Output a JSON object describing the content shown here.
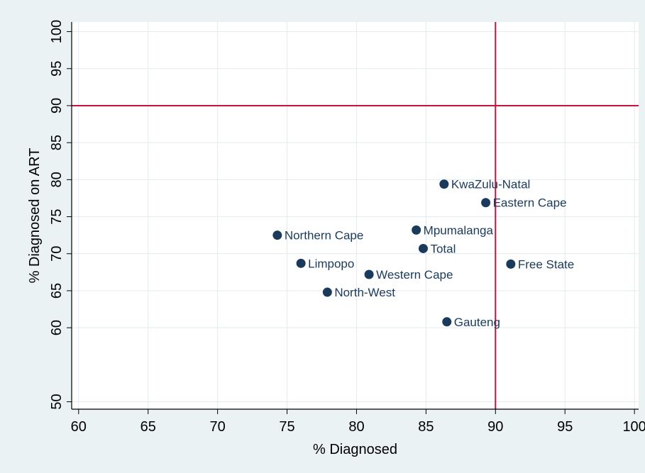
{
  "chart_data": {
    "type": "scatter",
    "xlabel": "% Diagnosed",
    "ylabel": "% Diagnosed on ART",
    "xlim": [
      59.5,
      100.3
    ],
    "ylim": [
      49,
      101.3
    ],
    "x_ticks": [
      60,
      65,
      70,
      75,
      80,
      85,
      90,
      95,
      100
    ],
    "y_ticks": [
      50,
      60,
      65,
      70,
      75,
      80,
      85,
      90,
      95,
      100
    ],
    "grid": true,
    "reference_lines": {
      "x": 90,
      "y": 90
    },
    "points": [
      {
        "label": "KwaZulu-Natal",
        "x": 86.3,
        "y": 79.4
      },
      {
        "label": "Eastern Cape",
        "x": 89.3,
        "y": 76.9
      },
      {
        "label": "Mpumalanga",
        "x": 84.3,
        "y": 73.2
      },
      {
        "label": "Northern Cape",
        "x": 74.3,
        "y": 72.5
      },
      {
        "label": "Total",
        "x": 84.8,
        "y": 70.7
      },
      {
        "label": "Limpopo",
        "x": 76.0,
        "y": 68.7
      },
      {
        "label": "Free State",
        "x": 91.1,
        "y": 68.6
      },
      {
        "label": "Western Cape",
        "x": 80.9,
        "y": 67.2
      },
      {
        "label": "North-West",
        "x": 77.9,
        "y": 64.8
      },
      {
        "label": "Gauteng",
        "x": 86.5,
        "y": 60.8
      }
    ]
  },
  "colors": {
    "background": "#eaf2f3",
    "plot_background": "#ffffff",
    "grid": "#e1ecee",
    "axis": "#000000",
    "reference_line": "#c3143c",
    "marker": "#1a3a5c",
    "label": "#1a3a5c"
  }
}
